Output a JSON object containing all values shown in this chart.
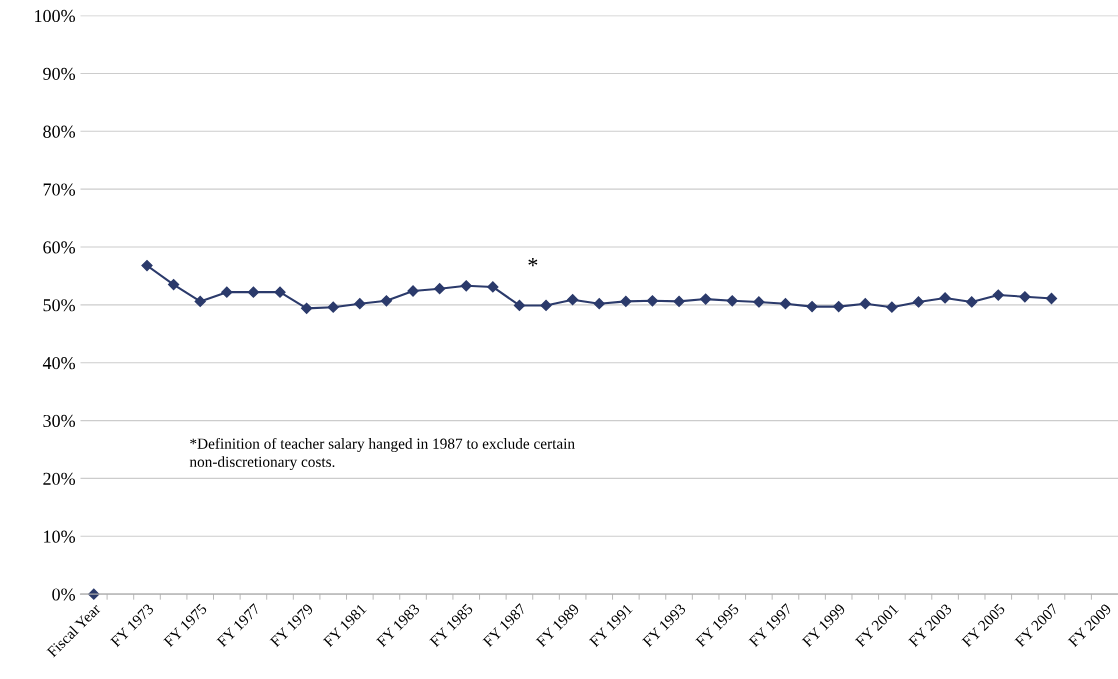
{
  "chart_data": {
    "type": "line",
    "categories": [
      "Fiscal Year",
      null,
      "FY 1973",
      null,
      "FY 1975",
      null,
      "FY 1977",
      null,
      "FY 1979",
      null,
      "FY 1981",
      null,
      "FY 1983",
      null,
      "FY 1985",
      null,
      "FY 1987",
      null,
      "FY 1989",
      null,
      "FY 1991",
      null,
      "FY 1993",
      null,
      "FY 1995",
      null,
      "FY 1997",
      null,
      "FY 1999",
      null,
      "FY 2001",
      null,
      "FY 2003",
      null,
      "FY 2005",
      null,
      "FY 2007",
      null,
      "FY 2009"
    ],
    "series": [
      {
        "color": "#2b3a6b",
        "values": [
          0,
          null,
          56.8,
          53.5,
          50.6,
          52.2,
          52.2,
          52.2,
          49.4,
          49.6,
          50.2,
          50.7,
          52.4,
          52.8,
          53.3,
          53.1,
          49.9,
          49.9,
          50.9,
          50.2,
          50.6,
          50.7,
          50.6,
          51.0,
          50.7,
          50.5,
          50.2,
          49.7,
          49.7,
          50.2,
          49.6,
          50.5,
          51.2,
          50.5,
          51.7,
          51.4,
          51.1,
          null,
          null
        ]
      }
    ],
    "ylim": [
      0,
      100
    ],
    "yticks": [
      {
        "value": 0,
        "label": "0%"
      },
      {
        "value": 10,
        "label": "10%"
      },
      {
        "value": 20,
        "label": "20%"
      },
      {
        "value": 30,
        "label": "30%"
      },
      {
        "value": 40,
        "label": "40%"
      },
      {
        "value": 50,
        "label": "50%"
      },
      {
        "value": 60,
        "label": "60%"
      },
      {
        "value": 70,
        "label": "70%"
      },
      {
        "value": 80,
        "label": "80%"
      },
      {
        "value": 90,
        "label": "90%"
      },
      {
        "value": 100,
        "label": "100%"
      }
    ],
    "annotations": [
      "*",
      "*Definition of teacher salary hanged in 1987 to exclude certain\nnon-discretionary costs."
    ],
    "grid": "y",
    "marker": "diamond",
    "line_style": "solid"
  }
}
